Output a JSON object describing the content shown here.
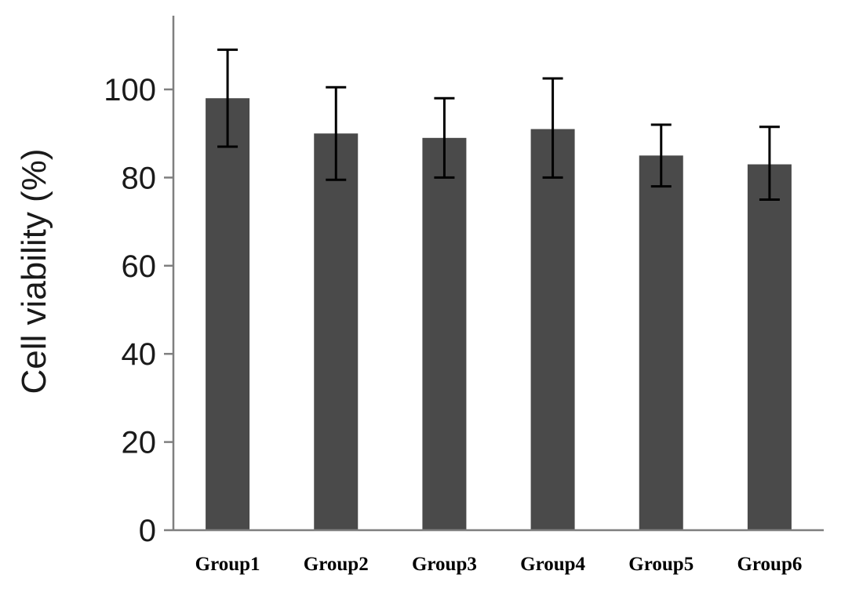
{
  "chart_data": {
    "type": "bar",
    "title": "",
    "xlabel": "",
    "ylabel": "Cell viability (%)",
    "categories": [
      "Group1",
      "Group2",
      "Group3",
      "Group4",
      "Group5",
      "Group6"
    ],
    "values": [
      98,
      90,
      89,
      91,
      85,
      83
    ],
    "error_upper": [
      109,
      100.5,
      98,
      102.5,
      92,
      91.5
    ],
    "error_lower": [
      87,
      79.5,
      80,
      80,
      78,
      75
    ],
    "ylim": [
      0,
      120
    ],
    "yticks": [
      0,
      20,
      40,
      60,
      80,
      100
    ],
    "grid": false,
    "colors": {
      "bar": "#4a4a4a",
      "axis": "#7f7f7f",
      "error_bar": "#000000"
    }
  }
}
